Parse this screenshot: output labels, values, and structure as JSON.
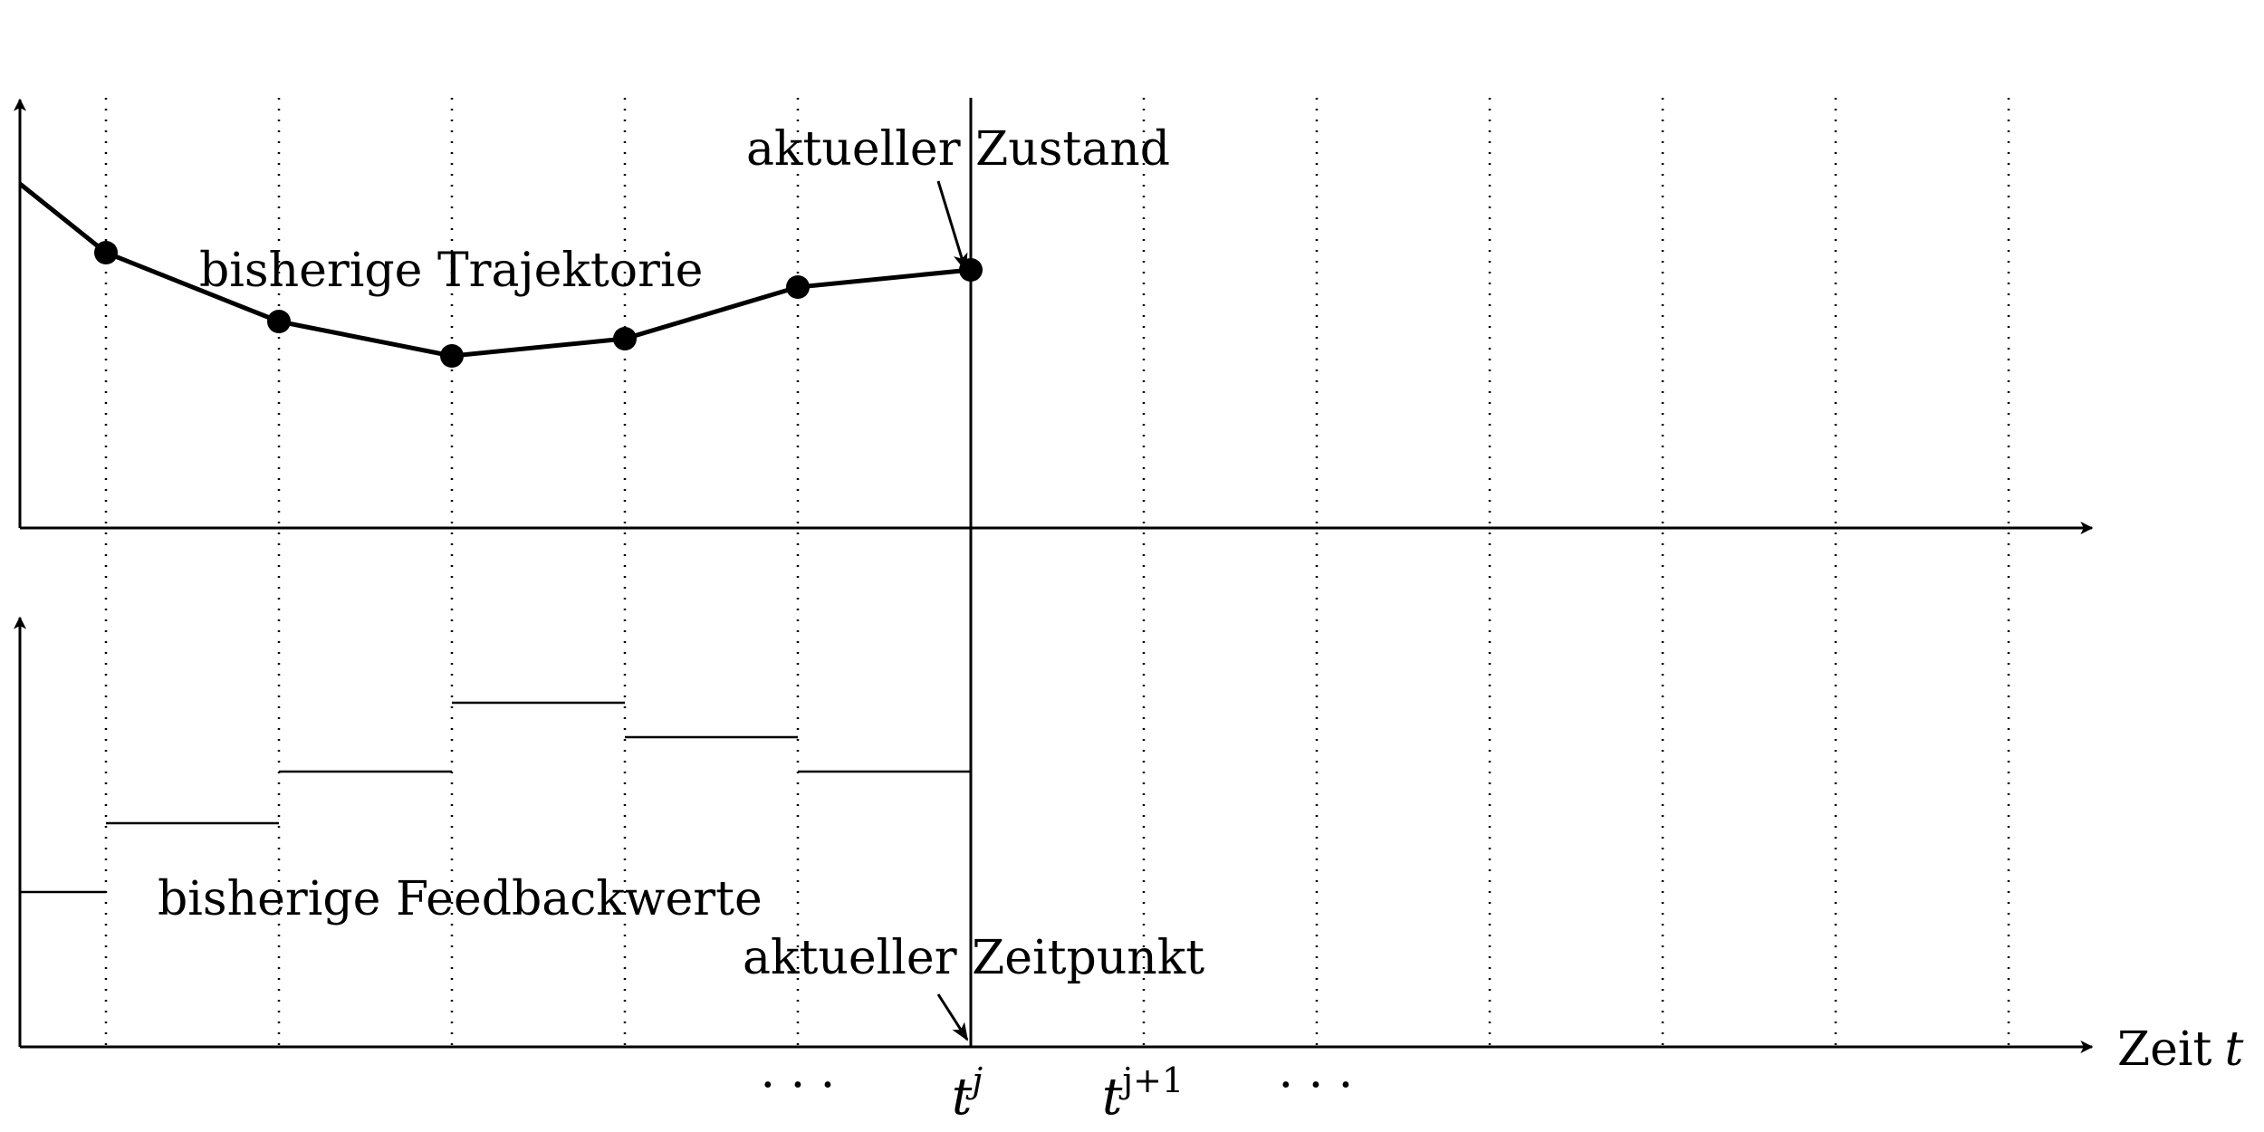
{
  "labels": {
    "trajectory": "bisherige Trajektorie",
    "current_state": "aktueller Zustand",
    "feedback": "bisherige Feedbackwerte",
    "current_time": "aktueller Zeitpunkt",
    "x_axis": "Zeit",
    "x_axis_symbol": "t"
  },
  "ticks": {
    "ellipsis_left": "· · ·",
    "tj_base": "t",
    "tj_sup": "j",
    "tj1_base": "t",
    "tj1_sup": "j+1",
    "ellipsis_right": "· · ·"
  },
  "trajectory_points": [
    {
      "step": 0,
      "y": 8.0
    },
    {
      "step": 1,
      "y": 6.0
    },
    {
      "step": 2,
      "y": 5.0
    },
    {
      "step": 3,
      "y": 5.5
    },
    {
      "step": 4,
      "y": 7.0
    },
    {
      "step": 5,
      "y": 7.5
    }
  ],
  "trajectory_start": {
    "step": -0.5,
    "y": 10.0
  },
  "feedback_values": [
    {
      "from": -0.5,
      "to": 0,
      "u": 4.5
    },
    {
      "from": 0,
      "to": 1,
      "u": 6.5
    },
    {
      "from": 1,
      "to": 2,
      "u": 8.0
    },
    {
      "from": 2,
      "to": 3,
      "u": 10.0
    },
    {
      "from": 3,
      "to": 4,
      "u": 9.0
    },
    {
      "from": 4,
      "to": 5,
      "u": 8.0
    }
  ]
}
